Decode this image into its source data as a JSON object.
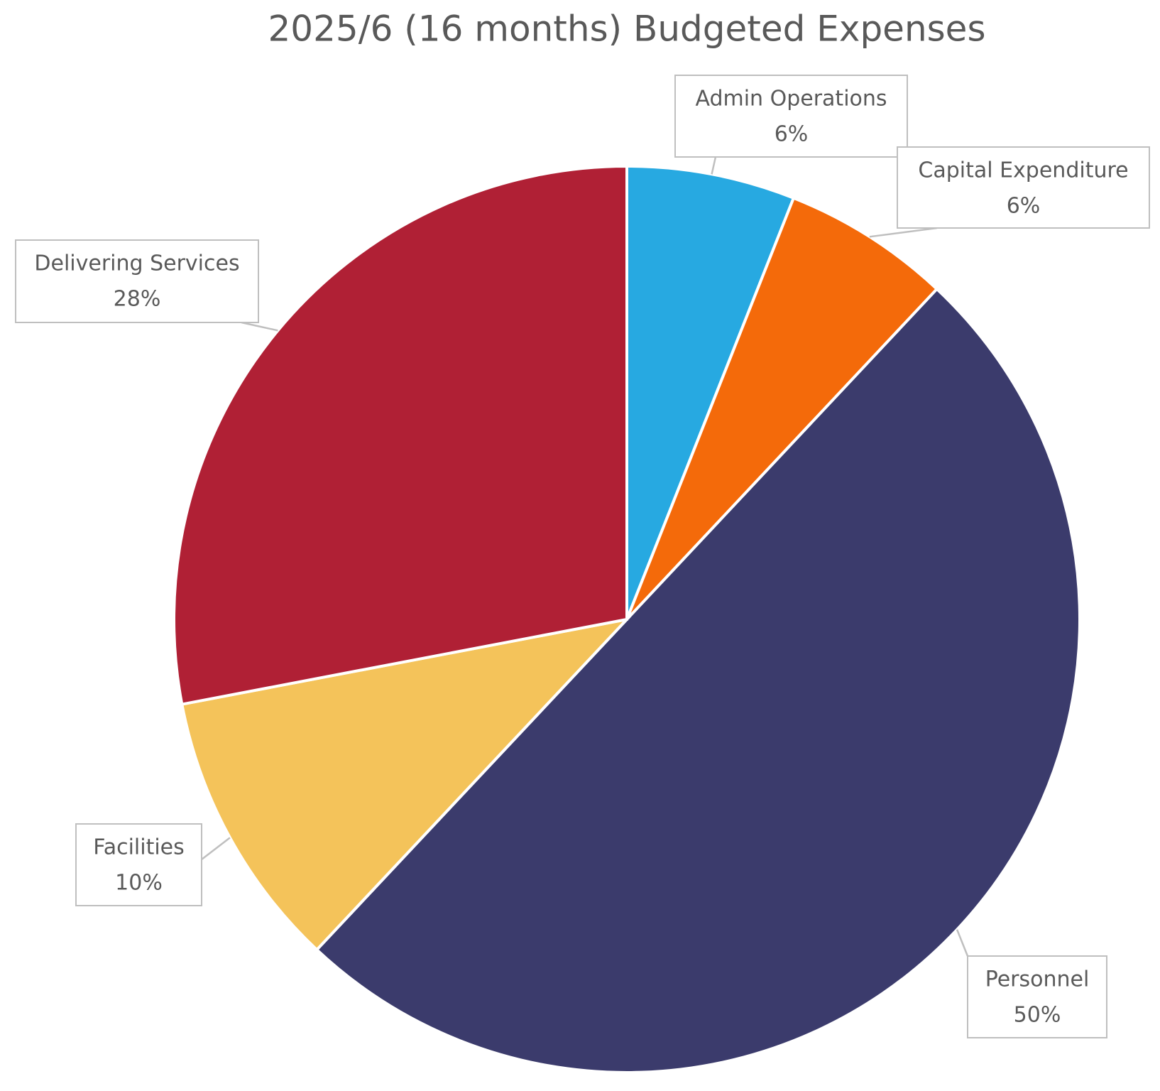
{
  "chart_data": {
    "type": "pie",
    "title": "2025/6 (16 months) Budgeted Expenses",
    "categories": [
      "Admin Operations",
      "Capital Expenditure",
      "Personnel",
      "Facilities",
      "Delivering Services"
    ],
    "values": [
      6,
      6,
      50,
      10,
      28
    ],
    "value_labels": [
      "6%",
      "6%",
      "50%",
      "10%",
      "28%"
    ],
    "colors": [
      "#27a9e1",
      "#f46a0a",
      "#3b3b6c",
      "#f4c35a",
      "#b02035"
    ]
  }
}
